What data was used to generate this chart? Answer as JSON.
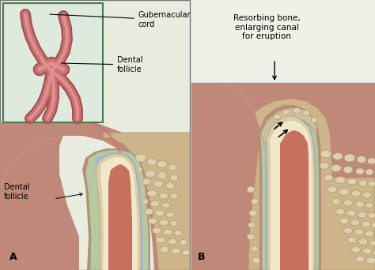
{
  "bg_color": "#f0f0e8",
  "panel_bg": "#e8ede0",
  "inset_bg": "#deeade",
  "skin_color": "#c08878",
  "bone_color": "#c4a07a",
  "spongy_color": "#cdb48a",
  "follicle_color": "#b8c8a0",
  "tooth_outer": "#d8cfa8",
  "tooth_dentin": "#f0e8c8",
  "tooth_pulp": "#c87060",
  "perio_color": "#a8b8d0",
  "cord_fill": "#cc7070",
  "cord_edge": "#a05050",
  "gum_pink": "#c07868",
  "label_fs": 7,
  "panel_label_fs": 9,
  "border_color": "#777777",
  "green_border": "#4a7a4a",
  "texts": {
    "gubernacular_cord": "Gubernacular\ncord",
    "dental_follicle_inset": "Dental\nfollicle",
    "dental_follicle_main": "Dental\nfollicle",
    "resorbing": "Resorbing bone,\nenlarging canal\nfor eruption",
    "panel_A": "A",
    "panel_B": "B"
  }
}
